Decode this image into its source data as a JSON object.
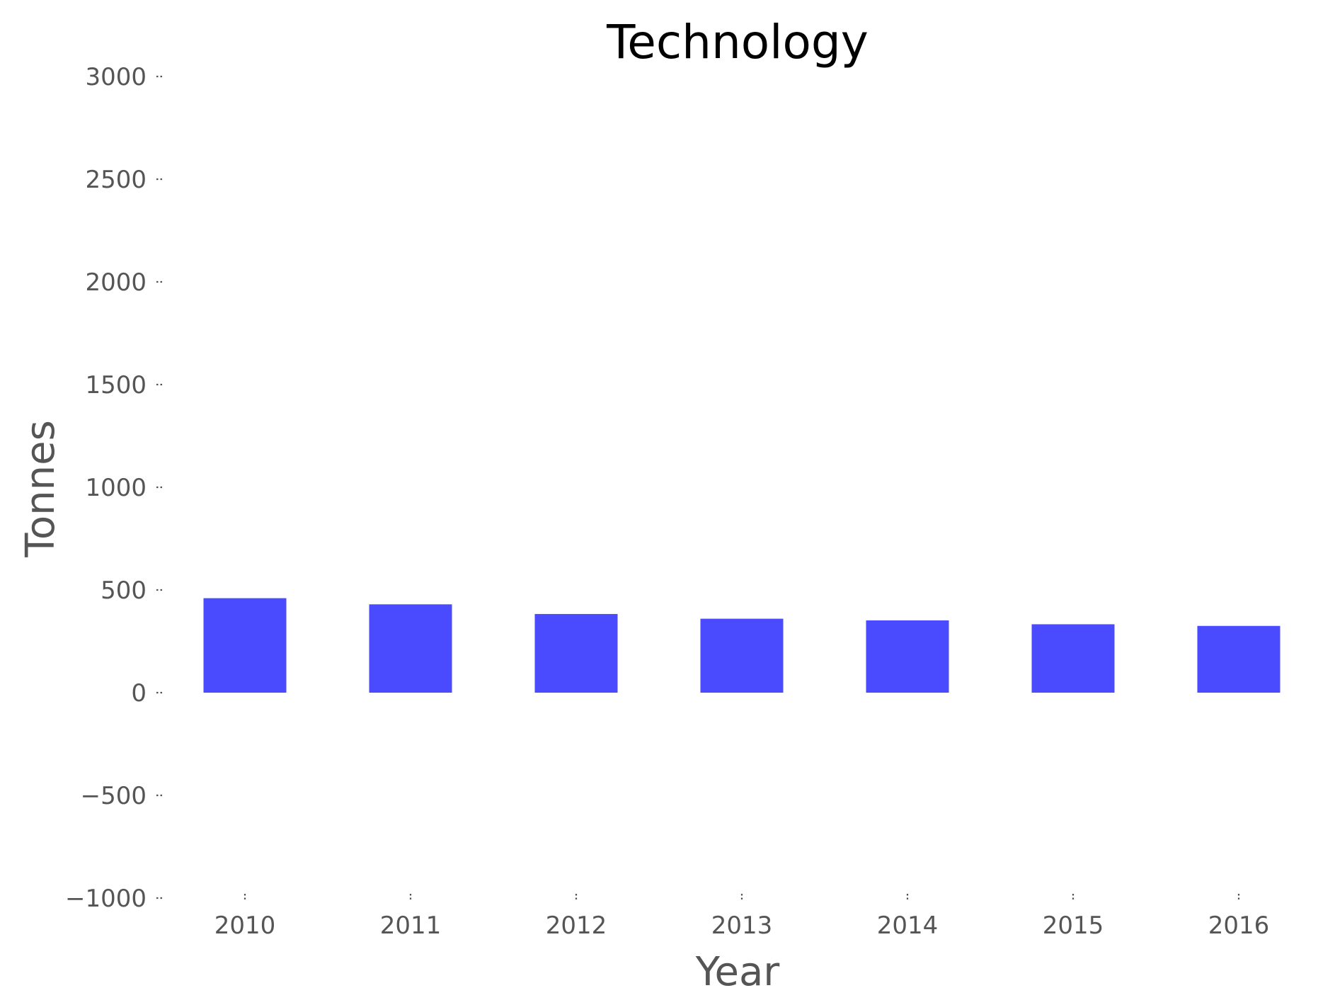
{
  "chart_data": {
    "type": "bar",
    "title": "Technology",
    "xlabel": "Year",
    "ylabel": "Tonnes",
    "categories": [
      "2010",
      "2011",
      "2012",
      "2013",
      "2014",
      "2015",
      "2016"
    ],
    "values": [
      460,
      430,
      383,
      360,
      352,
      333,
      325
    ],
    "ylim": [
      -1000,
      3000
    ],
    "yticks": [
      -1000,
      -500,
      0,
      500,
      1000,
      1500,
      2000,
      2500,
      3000
    ],
    "ytick_labels": [
      "−1000",
      "−500",
      "0",
      "500",
      "1000",
      "1500",
      "2000",
      "2500",
      "3000"
    ],
    "bar_color": "#4a4aff",
    "grid": false,
    "legend": "none"
  }
}
